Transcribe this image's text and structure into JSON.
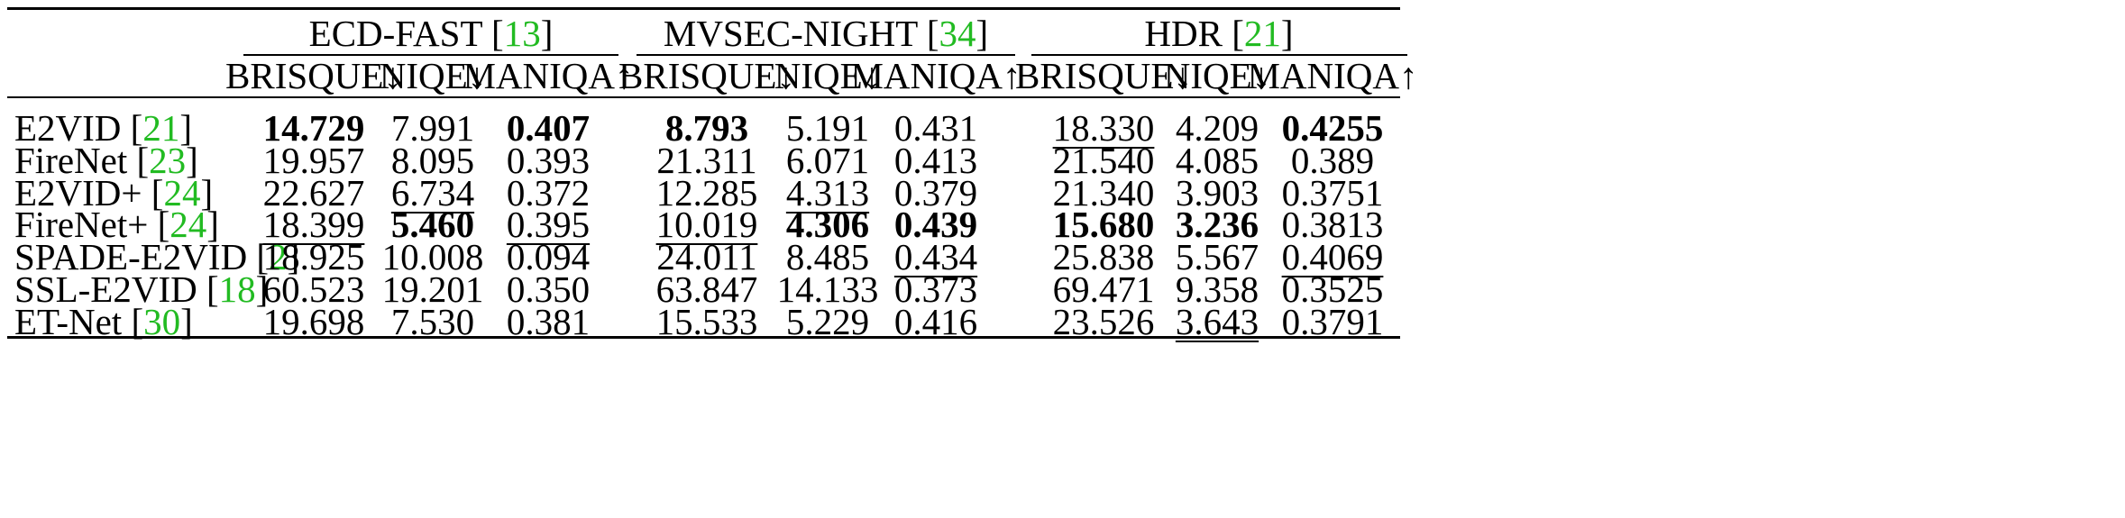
{
  "groups": [
    {
      "name": "ECD-FAST",
      "ref": "13"
    },
    {
      "name": "MVSEC-NIGHT",
      "ref": "34"
    },
    {
      "name": "HDR",
      "ref": "21"
    }
  ],
  "metrics": [
    "BRISQUE↓",
    "NIQE↓",
    "MANIQA↑"
  ],
  "rows": [
    {
      "method": "E2VID",
      "ref": "21",
      "values": [
        "14.729",
        "7.991",
        "0.407",
        "8.793",
        "5.191",
        "0.431",
        "18.330",
        "4.209",
        "0.4255"
      ],
      "styles": [
        "b",
        "",
        "b",
        "b",
        "",
        "",
        "u",
        "",
        "b"
      ]
    },
    {
      "method": "FireNet",
      "ref": "23",
      "values": [
        "19.957",
        "8.095",
        "0.393",
        "21.311",
        "6.071",
        "0.413",
        "21.540",
        "4.085",
        "0.389"
      ],
      "styles": [
        "",
        "",
        "",
        "",
        "",
        "",
        "",
        "",
        ""
      ]
    },
    {
      "method": "E2VID+",
      "ref": "24",
      "values": [
        "22.627",
        "6.734",
        "0.372",
        "12.285",
        "4.313",
        "0.379",
        "21.340",
        "3.903",
        "0.3751"
      ],
      "styles": [
        "",
        "u",
        "",
        "",
        "u",
        "",
        "",
        "",
        ""
      ]
    },
    {
      "method": "FireNet+",
      "ref": "24",
      "values": [
        "18.399",
        "5.460",
        "0.395",
        "10.019",
        "4.306",
        "0.439",
        "15.680",
        "3.236",
        "0.3813"
      ],
      "styles": [
        "u",
        "b",
        "u",
        "u",
        "b",
        "b",
        "b",
        "b",
        ""
      ]
    },
    {
      "method": "SPADE-E2VID",
      "ref": "2",
      "values": [
        "18.925",
        "10.008",
        "0.094",
        "24.011",
        "8.485",
        "0.434",
        "25.838",
        "5.567",
        "0.4069"
      ],
      "styles": [
        "",
        "",
        "",
        "",
        "",
        "u",
        "",
        "",
        "u"
      ]
    },
    {
      "method": "SSL-E2VID",
      "ref": "18",
      "values": [
        "60.523",
        "19.201",
        "0.350",
        "63.847",
        "14.133",
        "0.373",
        "69.471",
        "9.358",
        "0.3525"
      ],
      "styles": [
        "",
        "",
        "",
        "",
        "",
        "",
        "",
        "",
        ""
      ]
    },
    {
      "method": "ET-Net",
      "ref": "30",
      "values": [
        "19.698",
        "7.530",
        "0.381",
        "15.533",
        "5.229",
        "0.416",
        "23.526",
        "3.643",
        "0.3791"
      ],
      "styles": [
        "",
        "",
        "",
        "",
        "",
        "",
        "",
        "u",
        ""
      ]
    }
  ],
  "colors": {
    "ref": "#22bb22",
    "text": "#000000"
  }
}
